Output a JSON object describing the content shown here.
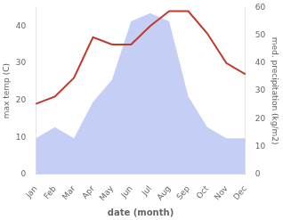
{
  "chart_data": {
    "type": "line",
    "xlabel": "date (month)",
    "ylabel": "max temp (C)",
    "y2label": "med. precipitation (kg/m2)",
    "categories": [
      "Jan",
      "Feb",
      "Mar",
      "Apr",
      "May",
      "Jun",
      "Jul",
      "Aug",
      "Sep",
      "Oct",
      "Nov",
      "Dec"
    ],
    "series": [
      {
        "type": "area",
        "axis": "y2",
        "color": "#c5cef5",
        "values": [
          13,
          17,
          13,
          26,
          34,
          55,
          58,
          55,
          28,
          17,
          13,
          13
        ]
      },
      {
        "type": "line",
        "color": "#c0392b",
        "values": [
          19,
          21,
          26,
          37,
          35,
          35,
          40,
          44,
          44,
          38,
          30,
          27
        ]
      }
    ],
    "ylim": [
      0,
      45
    ],
    "yticks": [
      0,
      10,
      20,
      30,
      40
    ],
    "y2lim": [
      0,
      60
    ],
    "y2ticks": [
      0,
      10,
      20,
      30,
      40,
      50,
      60
    ],
    "grid": false
  }
}
